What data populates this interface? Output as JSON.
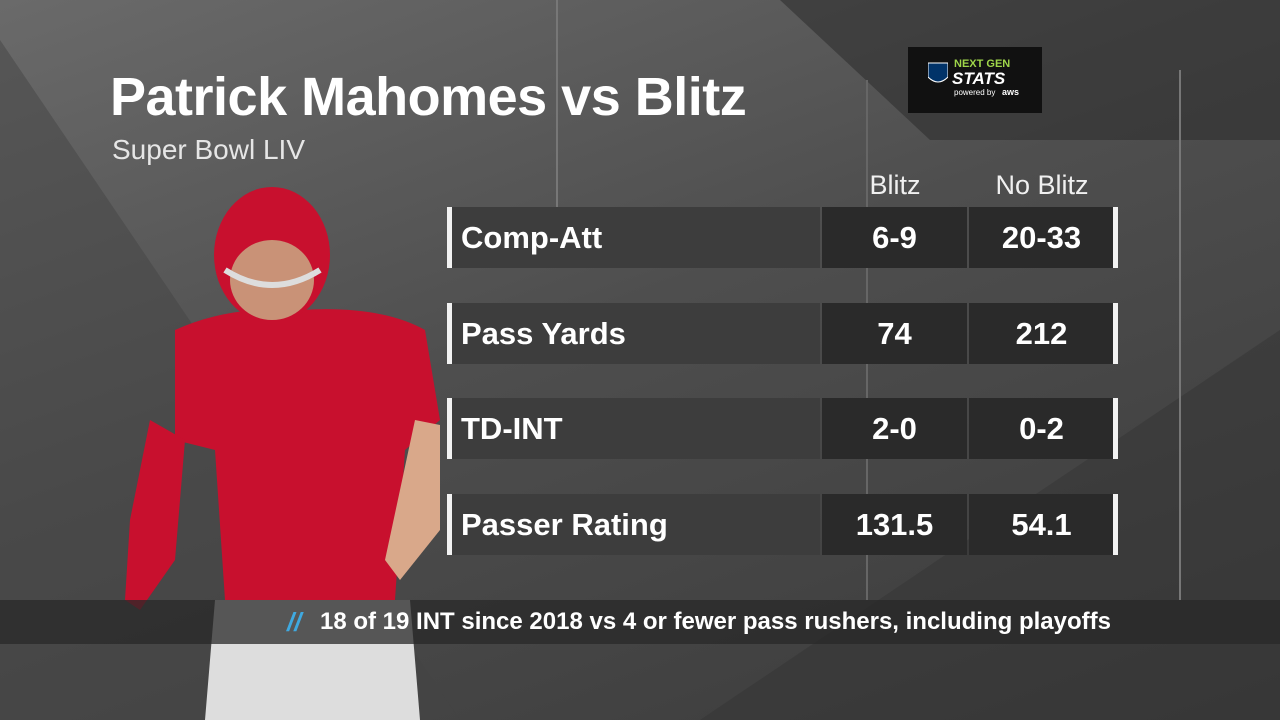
{
  "header": {
    "title": "Patrick Mahomes vs Blitz",
    "subtitle": "Super Bowl LIV"
  },
  "logo": {
    "line1": "NEXT GEN",
    "line2": "STATS",
    "line3": "powered by",
    "line4": "aws"
  },
  "table": {
    "columns": [
      "Blitz",
      "No Blitz"
    ],
    "rows": [
      {
        "label": "Comp-Att",
        "values": [
          "6-9",
          "20-33"
        ]
      },
      {
        "label": "Pass Yards",
        "values": [
          "74",
          "212"
        ]
      },
      {
        "label": "TD-INT",
        "values": [
          "2-0",
          "0-2"
        ]
      },
      {
        "label": "Passer Rating",
        "values": [
          "131.5",
          "54.1"
        ]
      }
    ]
  },
  "footer": {
    "marker": "//",
    "note": "18 of 19 INT since 2018 vs 4 or fewer pass rushers, including playoffs"
  }
}
